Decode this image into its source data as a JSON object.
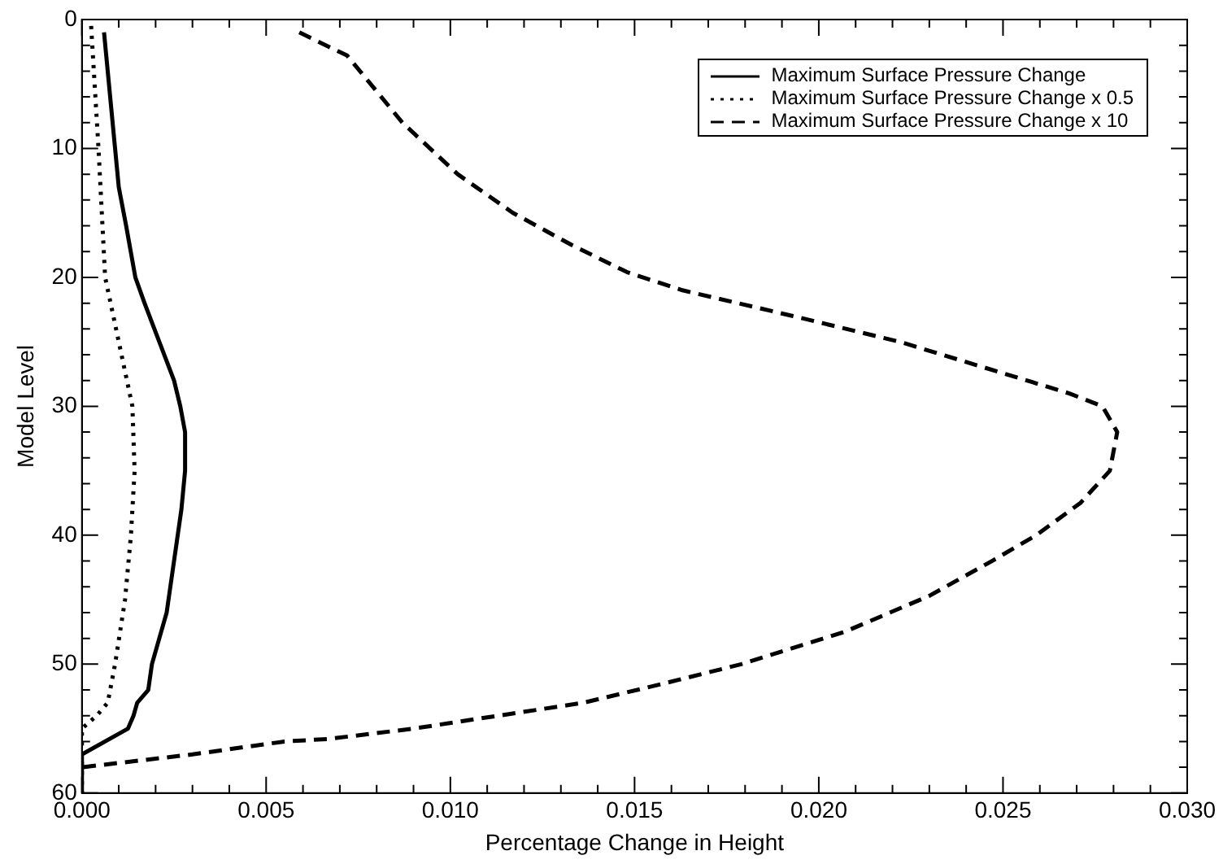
{
  "chart_data": {
    "type": "line",
    "xlabel": "Percentage Change in Height",
    "ylabel": "Model Level",
    "xlim": [
      0,
      0.03
    ],
    "ylim": [
      60,
      0
    ],
    "xticks": [
      {
        "value": 0,
        "label": "0.000"
      },
      {
        "value": 0.001,
        "label": null
      },
      {
        "value": 0.002,
        "label": null
      },
      {
        "value": 0.003,
        "label": null
      },
      {
        "value": 0.004,
        "label": null
      },
      {
        "value": 0.005,
        "label": "0.005"
      },
      {
        "value": 0.006,
        "label": null
      },
      {
        "value": 0.007,
        "label": null
      },
      {
        "value": 0.008,
        "label": null
      },
      {
        "value": 0.009,
        "label": null
      },
      {
        "value": 0.01,
        "label": "0.010"
      },
      {
        "value": 0.011,
        "label": null
      },
      {
        "value": 0.012,
        "label": null
      },
      {
        "value": 0.013,
        "label": null
      },
      {
        "value": 0.014,
        "label": null
      },
      {
        "value": 0.015,
        "label": "0.015"
      },
      {
        "value": 0.016,
        "label": null
      },
      {
        "value": 0.017,
        "label": null
      },
      {
        "value": 0.018,
        "label": null
      },
      {
        "value": 0.019,
        "label": null
      },
      {
        "value": 0.02,
        "label": "0.020"
      },
      {
        "value": 0.021,
        "label": null
      },
      {
        "value": 0.022,
        "label": null
      },
      {
        "value": 0.023,
        "label": null
      },
      {
        "value": 0.024,
        "label": null
      },
      {
        "value": 0.025,
        "label": "0.025"
      },
      {
        "value": 0.026,
        "label": null
      },
      {
        "value": 0.027,
        "label": null
      },
      {
        "value": 0.028,
        "label": null
      },
      {
        "value": 0.029,
        "label": null
      },
      {
        "value": 0.03,
        "label": "0.030"
      }
    ],
    "yticks": [
      0,
      {
        "value": 2,
        "label": null
      },
      {
        "value": 4,
        "label": null
      },
      {
        "value": 6,
        "label": null
      },
      {
        "value": 8,
        "label": null
      },
      10,
      {
        "value": 12,
        "label": null
      },
      {
        "value": 14,
        "label": null
      },
      {
        "value": 16,
        "label": null
      },
      {
        "value": 18,
        "label": null
      },
      20,
      {
        "value": 22,
        "label": null
      },
      {
        "value": 24,
        "label": null
      },
      {
        "value": 26,
        "label": null
      },
      {
        "value": 28,
        "label": null
      },
      30,
      {
        "value": 32,
        "label": null
      },
      {
        "value": 34,
        "label": null
      },
      {
        "value": 36,
        "label": null
      },
      {
        "value": 38,
        "label": null
      },
      40,
      {
        "value": 42,
        "label": null
      },
      {
        "value": 44,
        "label": null
      },
      {
        "value": 46,
        "label": null
      },
      {
        "value": 48,
        "label": null
      },
      50,
      {
        "value": 52,
        "label": null
      },
      {
        "value": 54,
        "label": null
      },
      {
        "value": 56,
        "label": null
      },
      {
        "value": 58,
        "label": null
      },
      60
    ],
    "grid": false,
    "legend": "top right",
    "marker": "none",
    "series": [
      {
        "name": "Maximum Surface Pressure Change",
        "color": "#000000",
        "line_style": "solid",
        "x": [
          0.0006,
          0.0009,
          0.001,
          0.0012,
          0.00145,
          0.0017,
          0.0021,
          0.0025,
          0.00267,
          0.0028,
          0.0028,
          0.0027,
          0.0026,
          0.0024,
          0.0023,
          0.0021,
          0.0019,
          0.0018,
          0.0015,
          0.0014,
          0.00125,
          0,
          0
        ],
        "values": [
          1,
          10,
          13,
          16,
          20,
          22,
          25,
          28,
          30,
          32,
          35,
          38,
          40,
          44,
          46,
          48,
          50,
          52,
          53,
          54,
          55,
          57,
          60
        ]
      },
      {
        "name": "Maximum Surface Pressure Change x 0.5",
        "color": "#000000",
        "line_style": "dotted",
        "x": [
          0.00025,
          0.00045,
          0.00063,
          0.001,
          0.00137,
          0.00143,
          0.00133,
          0.00117,
          0.0009,
          0.0007,
          0.0004,
          0,
          0
        ],
        "values": [
          0.5,
          10,
          20,
          25,
          30,
          35,
          40,
          45,
          50,
          53,
          54,
          55,
          60
        ]
      },
      {
        "name": "Maximum Surface Pressure Change x 10",
        "color": "#000000",
        "line_style": "dashed",
        "x": [
          0.0059,
          0.0072,
          0.0087,
          0.0102,
          0.0117,
          0.0133,
          0.0148,
          0.0163,
          0.0178,
          0.0193,
          0.0222,
          0.0245,
          0.0268,
          0.0277,
          0.0281,
          0.0279,
          0.0271,
          0.0259,
          0.0247,
          0.023,
          0.0207,
          0.0179,
          0.0158,
          0.0136,
          0.0113,
          0.009,
          0.0067,
          0.0055,
          0.003,
          0
        ],
        "values": [
          1,
          2.8,
          8,
          12,
          15,
          17.5,
          19.6,
          21,
          22,
          23,
          25,
          27,
          29,
          30,
          32,
          35,
          37.5,
          40,
          42,
          44.7,
          47.5,
          50,
          51.5,
          53,
          54,
          55,
          55.8,
          56,
          57,
          58
        ]
      }
    ]
  }
}
